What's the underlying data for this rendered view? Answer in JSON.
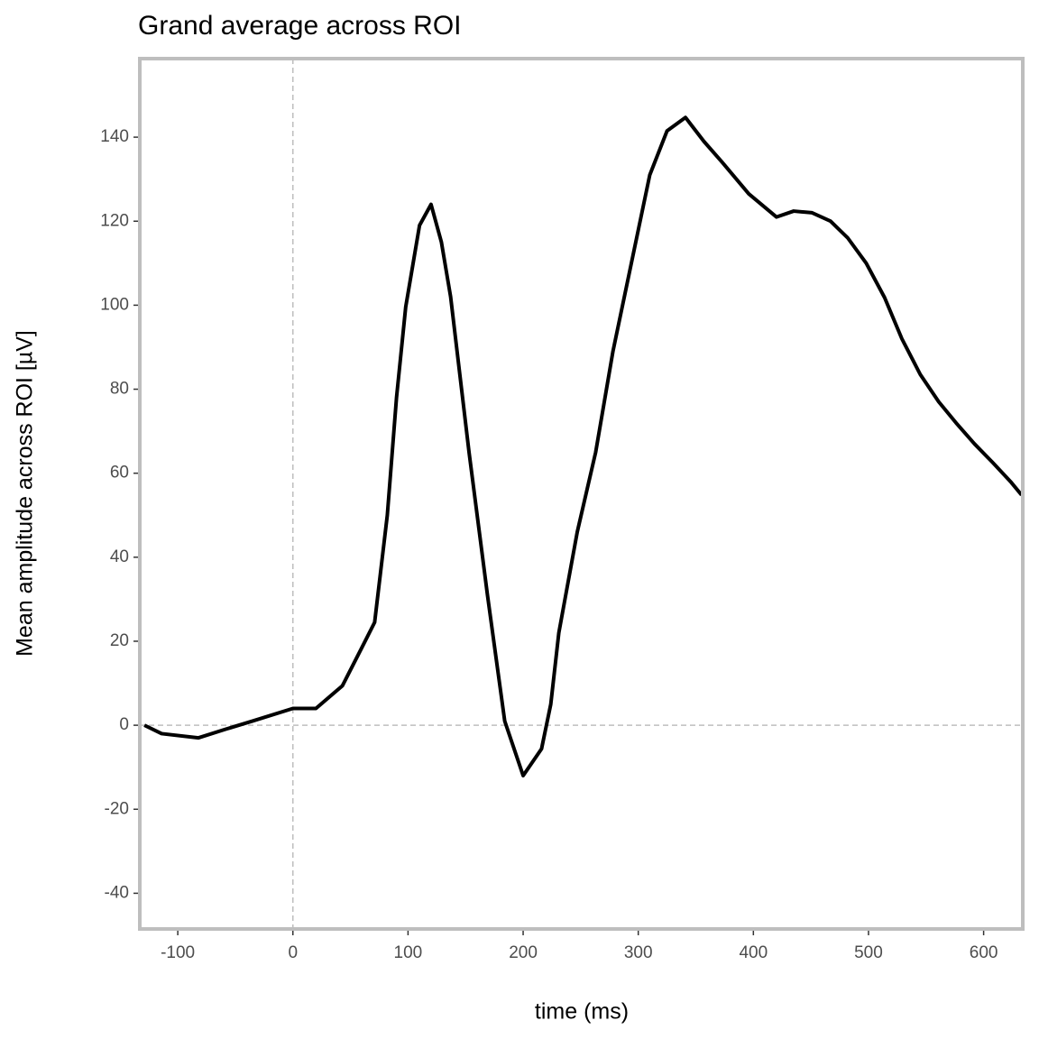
{
  "chart_data": {
    "type": "line",
    "title": "Grand average across ROI",
    "x_label": "time (ms)",
    "y_label": "Mean amplitude across ROI [µV]",
    "x": [
      -129,
      -114,
      -82,
      -59,
      -35,
      0,
      20,
      43,
      59,
      71,
      82,
      90,
      98,
      110,
      120,
      129,
      137,
      153,
      169,
      184,
      200,
      216,
      224,
      231,
      247,
      263,
      278,
      294,
      310,
      325,
      341,
      357,
      373,
      396,
      420,
      435,
      451,
      467,
      482,
      498,
      514,
      529,
      545,
      561,
      576,
      592,
      608,
      624,
      633
    ],
    "series": [
      {
        "color": "#000000",
        "values": [
          0,
          -2,
          -3,
          -1,
          1,
          4,
          4,
          9.4,
          18,
          24.5,
          50,
          78,
          99.6,
          119,
          124,
          115,
          102,
          65,
          31,
          1,
          -12,
          -5.6,
          5,
          22,
          46,
          65,
          89,
          110,
          131,
          141.5,
          144.7,
          139,
          134,
          126.5,
          121,
          122.4,
          122,
          120,
          116,
          110,
          101.8,
          92,
          83.5,
          77,
          72,
          67,
          62.5,
          57.8,
          54.8
        ]
      }
    ],
    "xlim": [
      -133,
      634
    ],
    "ylim": [
      -48.5,
      158.7
    ],
    "xticks": [
      -100,
      0,
      100,
      200,
      300,
      400,
      500,
      600
    ],
    "yticks": [
      -40,
      -20,
      0,
      20,
      40,
      60,
      80,
      100,
      120,
      140
    ],
    "hline": 0,
    "vline": 0,
    "grid": false
  }
}
